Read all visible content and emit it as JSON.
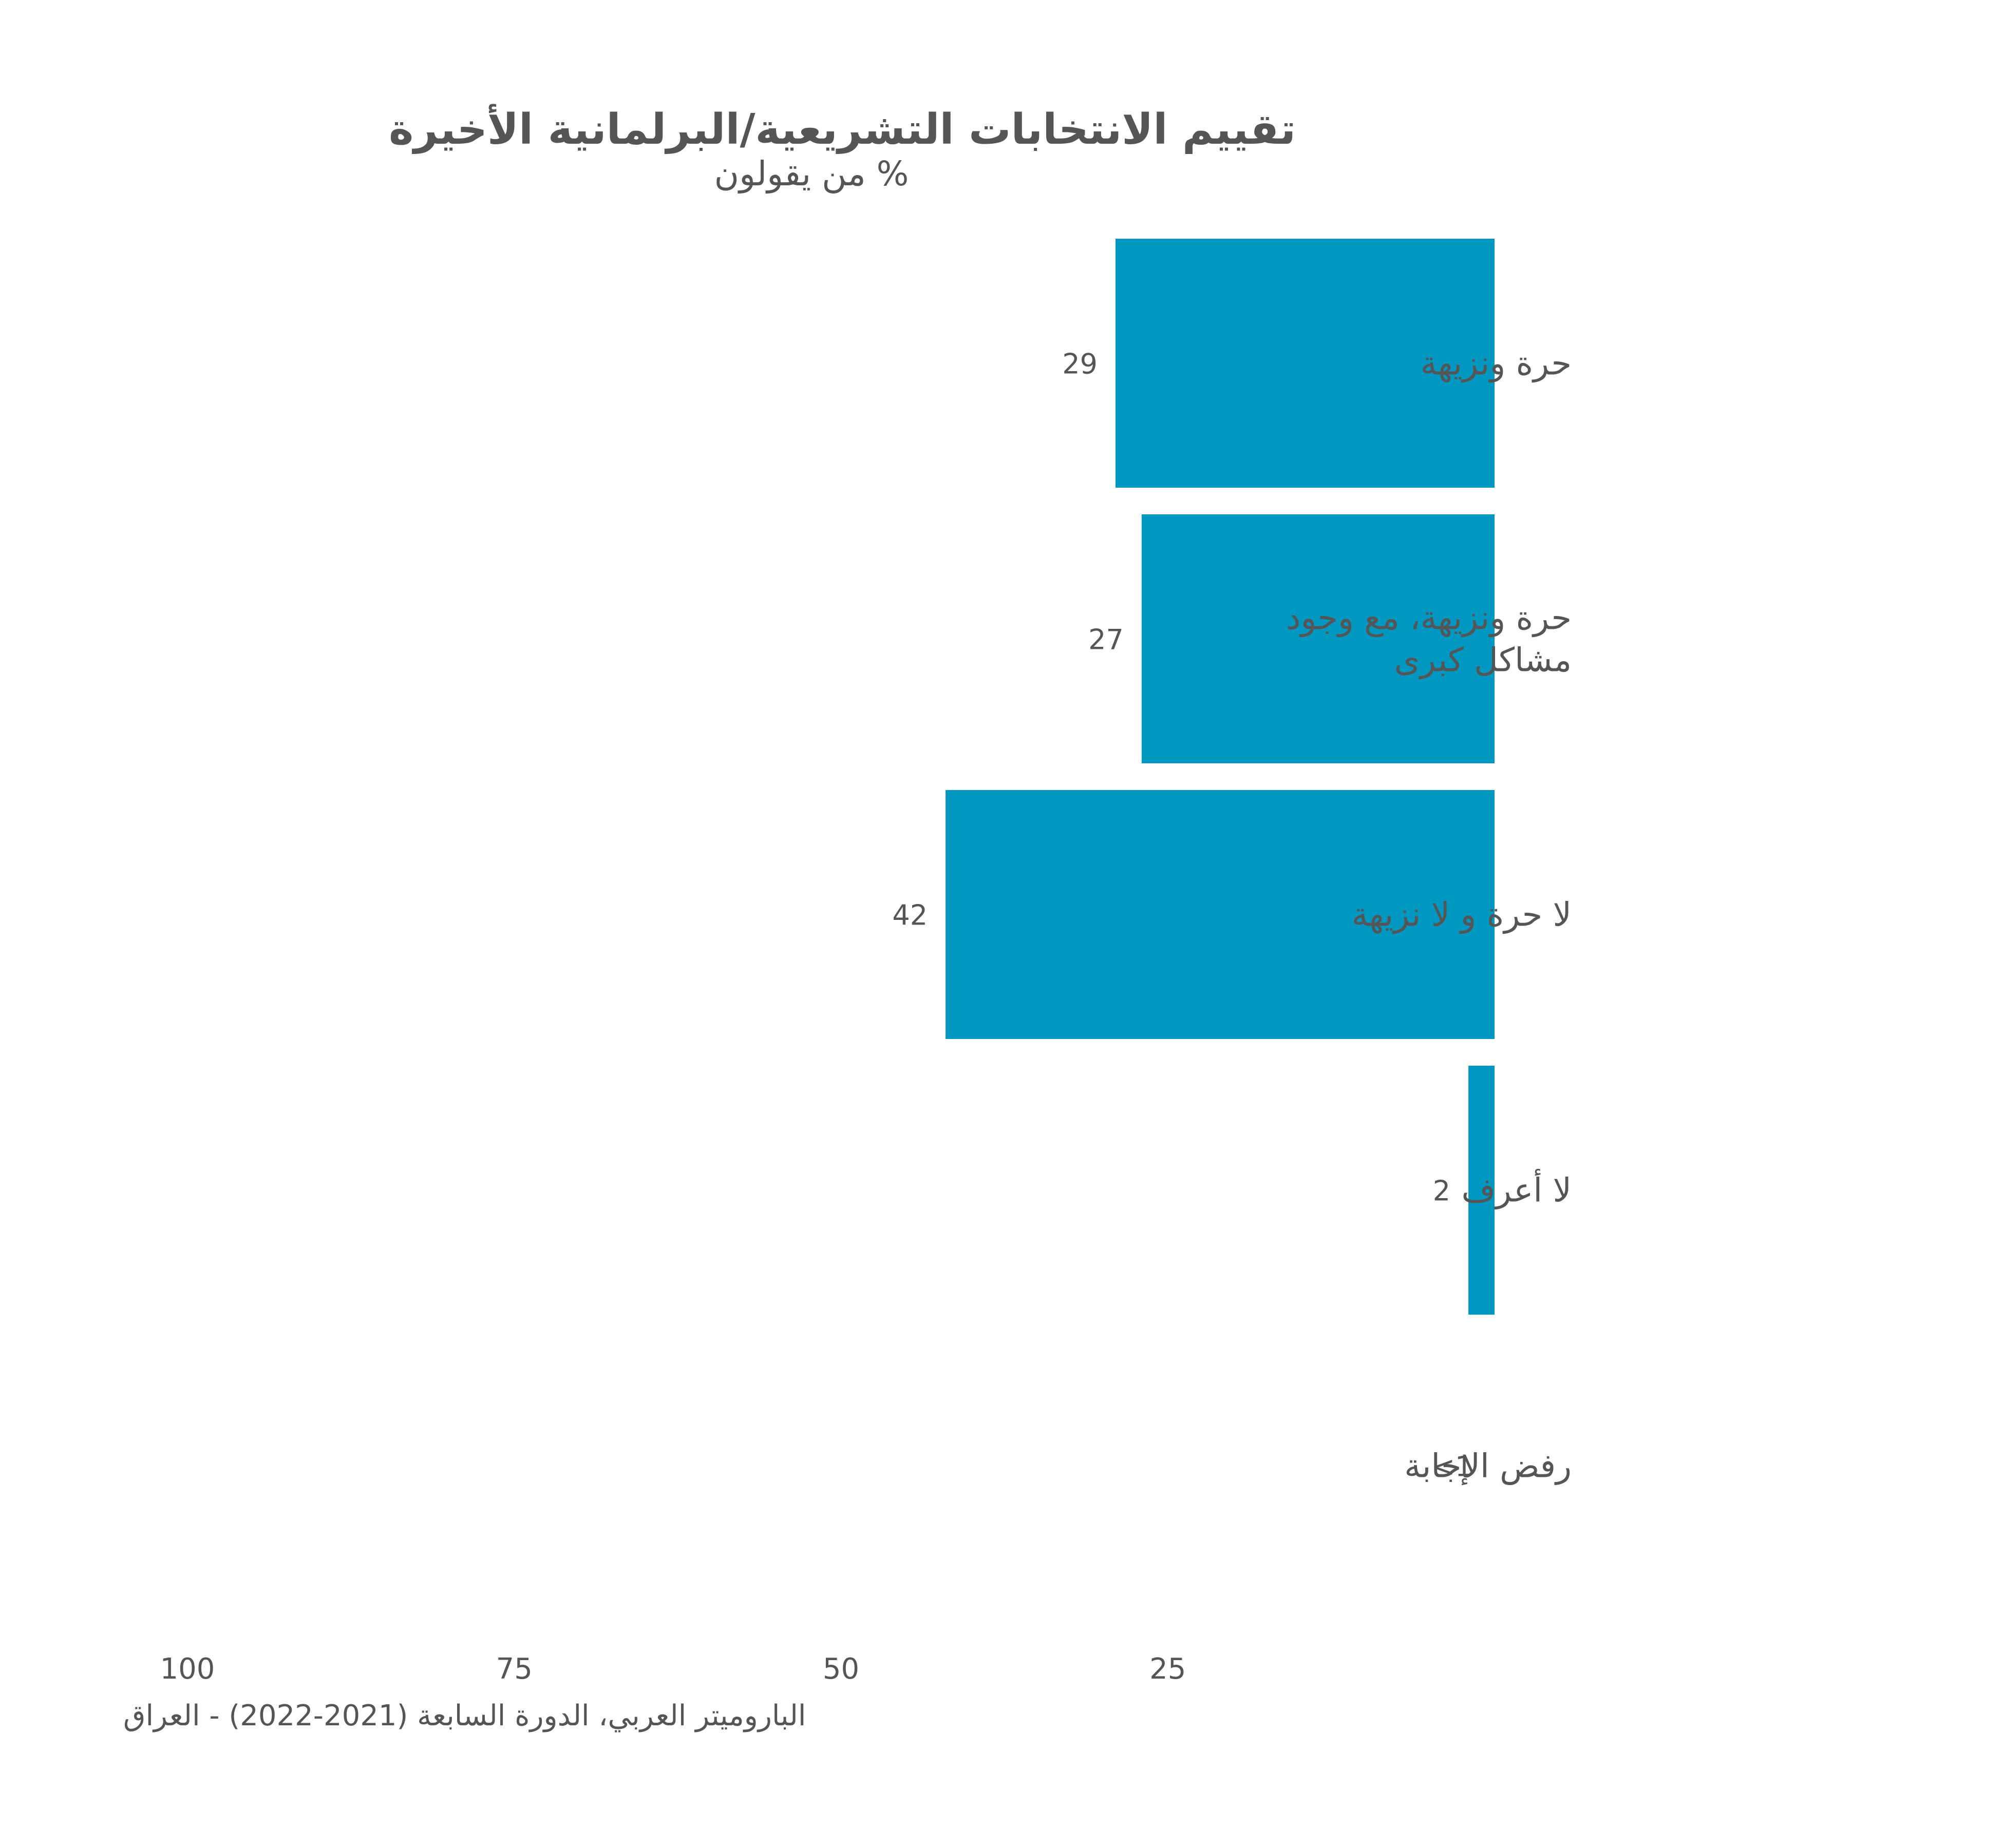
{
  "chart_data": {
    "type": "bar",
    "orientation": "horizontal",
    "title": "تقييم الانتخابات التشريعية/البرلمانية الأخيرة",
    "subtitle": "% من يقولون",
    "source": "الباروميتر العربي، الدورة السابعة (2021-2022) - العراق",
    "categories": [
      [
        "حرة ونزيهة"
      ],
      [
        "حرة ونزيهة، مع وجود",
        "مشاكل كبرى"
      ],
      [
        "لا حرة و لا نزيهة"
      ],
      [
        "لا أعرف"
      ],
      [
        "رفض الإجابة"
      ]
    ],
    "values": [
      29,
      27,
      42,
      2,
      0.3
    ],
    "value_labels": [
      "29",
      "27",
      "42",
      "2",
      "<1"
    ],
    "xlim": [
      0,
      100
    ],
    "x_reversed": true,
    "xticks": [
      25,
      50,
      75,
      100
    ],
    "grid": false,
    "bar_color": "#0098c0"
  }
}
